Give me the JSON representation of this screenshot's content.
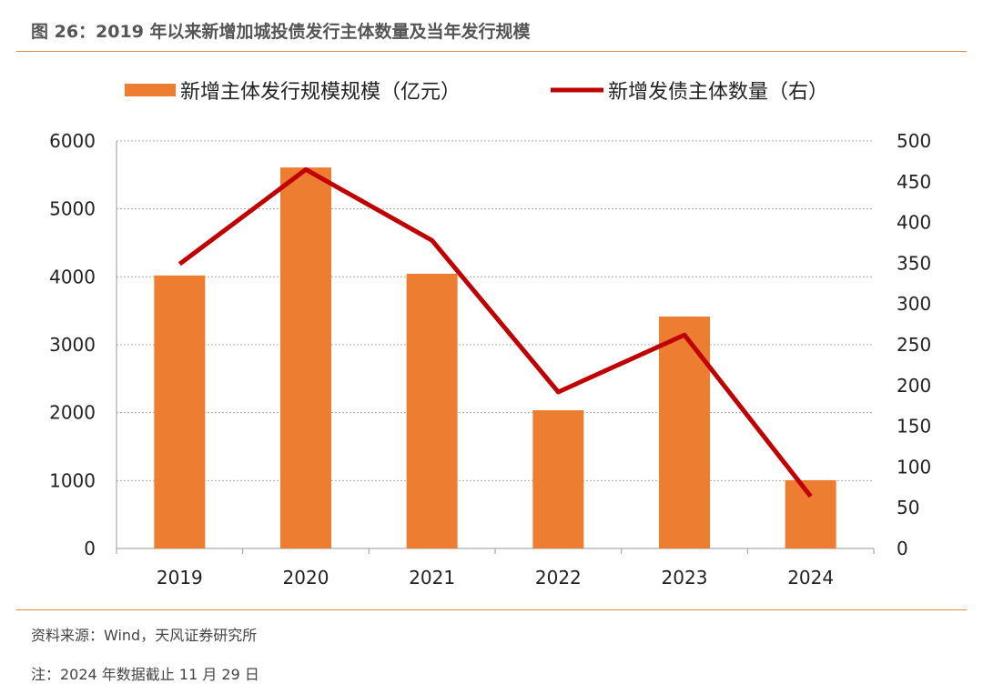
{
  "title": "图 26：2019 年以来新增加城投债发行主体数量及当年发行规模",
  "source": "资料来源：Wind，天风证券研究所",
  "note": "注：2024 年数据截止 11 月 29 日",
  "chart_data": {
    "type": "bar+line",
    "categories": [
      "2019",
      "2020",
      "2021",
      "2022",
      "2023",
      "2024"
    ],
    "series": [
      {
        "name": "新增主体发行规模规模（亿元）",
        "type": "bar",
        "axis": "left",
        "color": "#ed7d31",
        "values": [
          4020,
          5610,
          4045,
          2035,
          3415,
          1005
        ]
      },
      {
        "name": "新增发债主体数量（右）",
        "type": "line",
        "axis": "right",
        "color": "#c00000",
        "values": [
          349,
          465,
          378,
          192,
          262,
          64
        ]
      }
    ],
    "y_left": {
      "lim": [
        0,
        6000
      ],
      "ticks": [
        "0",
        "1000",
        "2000",
        "3000",
        "4000",
        "5000",
        "6000"
      ]
    },
    "y_right": {
      "lim": [
        0,
        500
      ],
      "ticks": [
        "0",
        "50",
        "100",
        "150",
        "200",
        "250",
        "300",
        "350",
        "400",
        "450",
        "500"
      ]
    },
    "grid": true,
    "legend": "top"
  }
}
